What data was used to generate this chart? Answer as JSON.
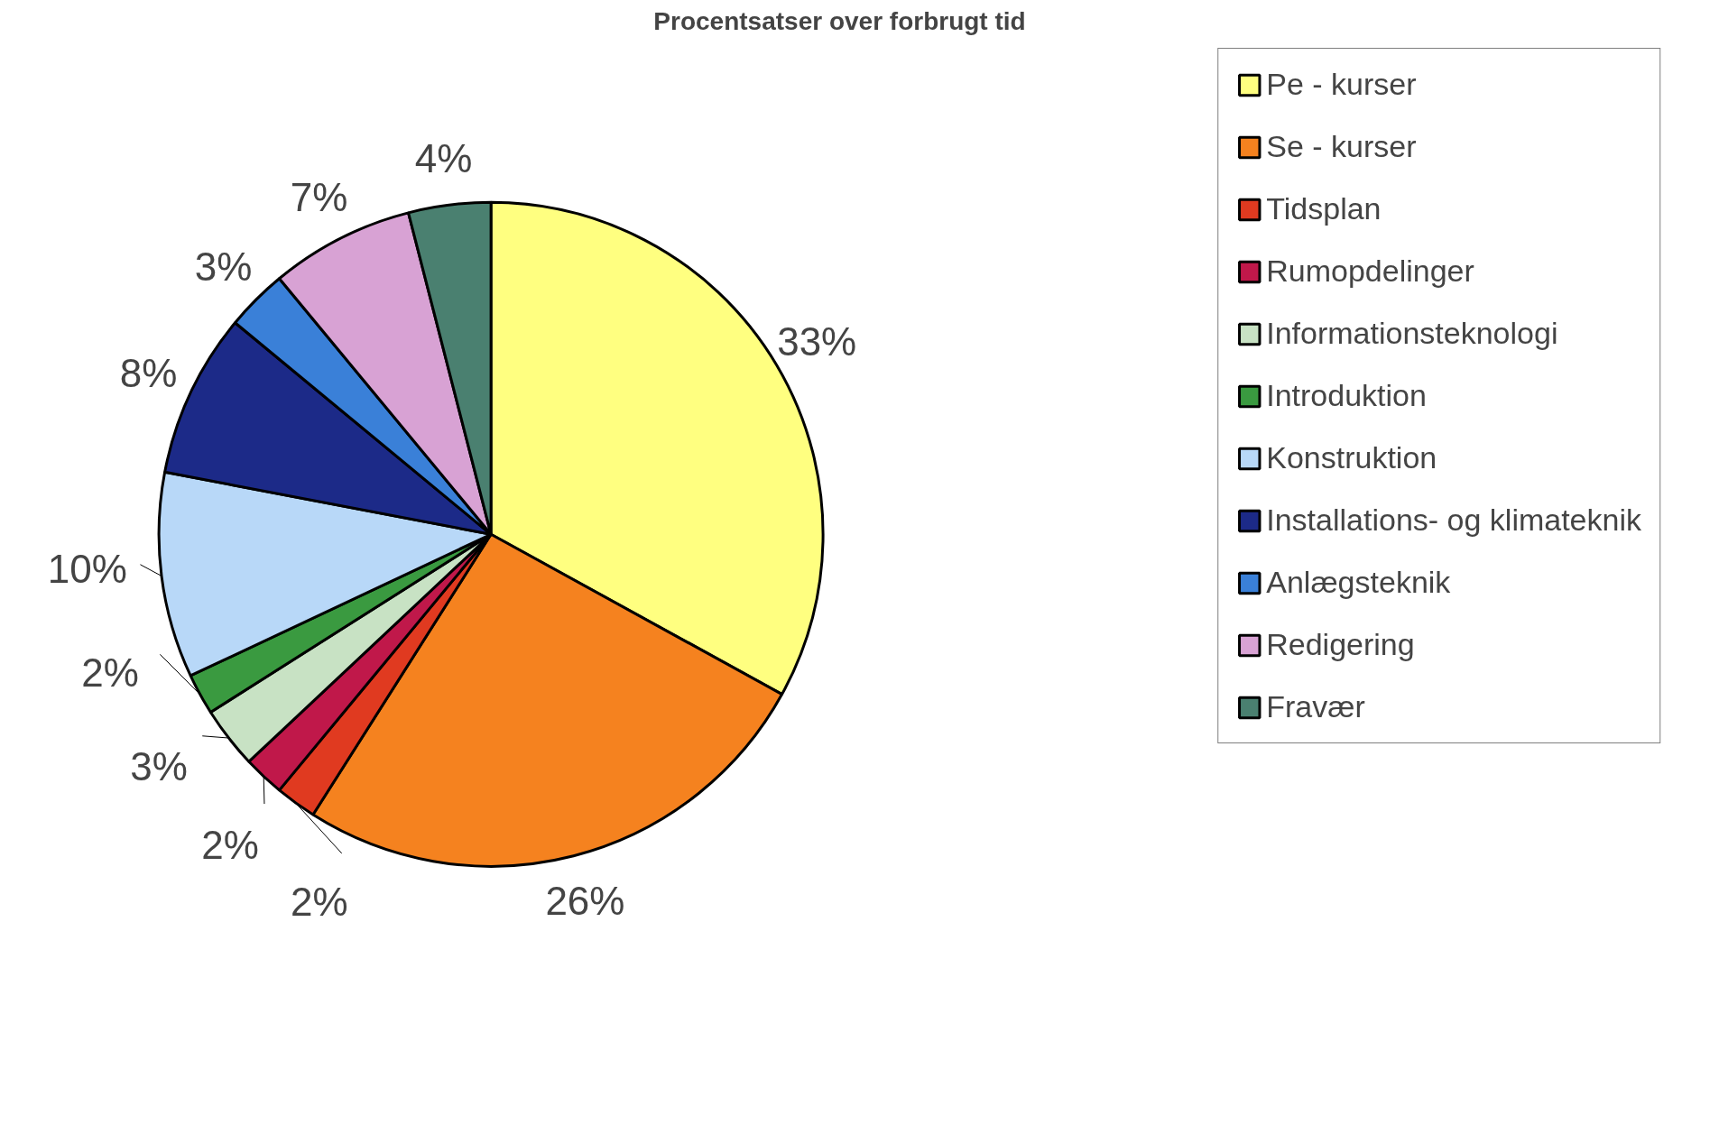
{
  "chart_data": {
    "type": "pie",
    "title": "Procentsatser over forbrugt tid",
    "categories": [
      "Pe - kurser",
      "Se - kurser",
      "Tidsplan",
      "Rumopdelinger",
      "Informationsteknologi",
      "Introduktion",
      "Konstruktion",
      "Installations- og klimateknik",
      "Anlægsteknik",
      "Redigering",
      "Fravær"
    ],
    "values": [
      33,
      26,
      2,
      2,
      3,
      2,
      10,
      8,
      3,
      7,
      4
    ],
    "colors": [
      "#ffff80",
      "#f5821f",
      "#e03a20",
      "#c0184a",
      "#c8e2c4",
      "#3a9a40",
      "#b8d8f8",
      "#1c2a88",
      "#3a80d8",
      "#d8a2d4",
      "#4a8070"
    ],
    "data_labels": true,
    "value_labels": [
      "33%",
      "26%",
      "2%",
      "2%",
      "3%",
      "2%",
      "10%",
      "8%",
      "3%",
      "7%",
      "4%"
    ],
    "legend": "right"
  }
}
